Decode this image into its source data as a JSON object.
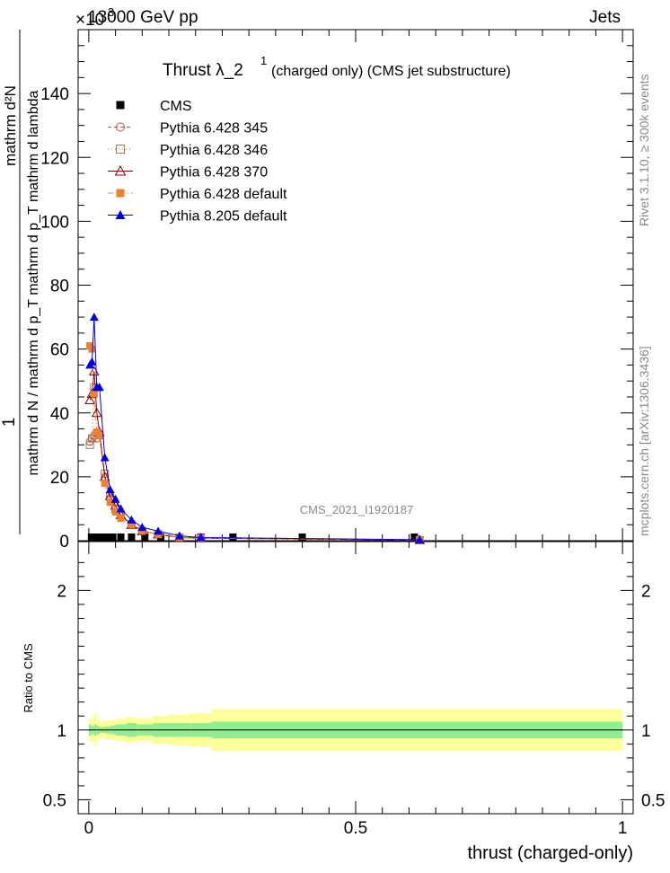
{
  "header": {
    "left": "13000 GeV pp",
    "right": "Jets",
    "exponent": "×10"
  },
  "title": {
    "main": "Thrust  λ_2",
    "sup": "1",
    "rest": "(charged only) (CMS jet substructure)"
  },
  "watermark": "CMS_2021_I1920187",
  "side_text": {
    "rivet": "Rivet 3.1.10, ≥ 300k events",
    "mcplots": "mcplots.cern.ch [arXiv:1306.3436]"
  },
  "ylabel_main": {
    "numerator": "1",
    "denominator": "mathrm d N / mathrm d p_T mathrm d p_T mathrm d lambda",
    "numerator2": "mathrm d²N"
  },
  "ylabel_ratio": "Ratio to CMS",
  "xlabel": "thrust (charged-only)",
  "colors": {
    "cms": "#000000",
    "p345": "#c0504d",
    "p346": "#a0784c",
    "p370": "#800000",
    "pdef": "#f08030",
    "p8": "#0000dd",
    "band_inner": "#90ee90",
    "band_outer": "#ffff99"
  },
  "chart_data": [
    {
      "type": "line",
      "xlim": [
        -0.02,
        1.02
      ],
      "ylim": [
        0,
        160
      ],
      "y_scale_exponent": 3,
      "yticks": [
        0,
        20,
        40,
        60,
        80,
        100,
        120,
        140
      ],
      "series": [
        {
          "name": "CMS",
          "marker": "square",
          "x": [
            0.005,
            0.015,
            0.025,
            0.035,
            0.045,
            0.06,
            0.08,
            0.105,
            0.135,
            0.17,
            0.21,
            0.27,
            0.4,
            0.61
          ],
          "y": [
            0.5,
            0.5,
            0.5,
            0.5,
            0.5,
            0.5,
            0.5,
            0.5,
            0.5,
            0.3,
            0.3,
            0.2,
            0.1,
            0.05
          ]
        },
        {
          "name": "Pythia 6.428 345",
          "marker": "open-circle",
          "x": [
            0.002,
            0.006,
            0.01,
            0.015,
            0.02,
            0.03,
            0.04,
            0.05,
            0.06,
            0.08,
            0.1,
            0.13,
            0.17,
            0.21,
            0.62
          ],
          "y": [
            31,
            32,
            33,
            32,
            33,
            20,
            13,
            10,
            8,
            5,
            3,
            2,
            1,
            0.8,
            0.2
          ]
        },
        {
          "name": "Pythia 6.428 346",
          "marker": "open-square",
          "x": [
            0.002,
            0.006,
            0.01,
            0.015,
            0.02,
            0.03,
            0.04,
            0.05,
            0.06,
            0.08,
            0.1,
            0.13,
            0.17,
            0.21,
            0.62
          ],
          "y": [
            30,
            32,
            48,
            33,
            33,
            21,
            14,
            10,
            8,
            5,
            3,
            2,
            1,
            0.8,
            0.2
          ]
        },
        {
          "name": "Pythia 6.428 370",
          "marker": "open-triangle",
          "x": [
            0.002,
            0.006,
            0.01,
            0.015,
            0.02,
            0.03,
            0.04,
            0.05,
            0.06,
            0.08,
            0.1,
            0.13,
            0.17,
            0.21,
            0.62
          ],
          "y": [
            44,
            46,
            53,
            40,
            34,
            20,
            14,
            11,
            8,
            5,
            3,
            2,
            1,
            0.8,
            0.2
          ]
        },
        {
          "name": "Pythia 6.428 default",
          "marker": "filled-square",
          "x": [
            0.002,
            0.006,
            0.01,
            0.015,
            0.02,
            0.03,
            0.04,
            0.05,
            0.06,
            0.08,
            0.1,
            0.13,
            0.17,
            0.21,
            0.62
          ],
          "y": [
            61,
            60,
            46,
            34,
            33,
            18,
            12,
            9,
            7,
            5,
            3,
            2,
            1,
            0.8,
            0.2
          ]
        },
        {
          "name": "Pythia 8.205 default",
          "marker": "filled-triangle",
          "x": [
            0.002,
            0.006,
            0.01,
            0.015,
            0.02,
            0.03,
            0.04,
            0.05,
            0.06,
            0.08,
            0.1,
            0.13,
            0.17,
            0.21,
            0.62
          ],
          "y": [
            55,
            56,
            70,
            48,
            48,
            26,
            16,
            13,
            10,
            6.5,
            4.2,
            3,
            1.5,
            1,
            0.3
          ]
        }
      ],
      "legend_position": "top-left"
    },
    {
      "type": "area",
      "xlim": [
        -0.02,
        1.02
      ],
      "ylim": [
        0.4,
        2.35
      ],
      "yticks": [
        0.5,
        1,
        2
      ],
      "xticks": [
        0,
        0.5,
        1
      ],
      "xtick_labels": [
        "0",
        "0.5",
        "1"
      ],
      "bins": [
        0,
        0.005,
        0.01,
        0.015,
        0.02,
        0.03,
        0.04,
        0.05,
        0.07,
        0.09,
        0.12,
        0.15,
        0.19,
        0.23,
        1.0
      ],
      "inner_band": [
        0.04,
        0.03,
        0.04,
        0.03,
        0.02,
        0.025,
        0.03,
        0.04,
        0.05,
        0.04,
        0.05,
        0.05,
        0.05,
        0.06
      ],
      "outer_band": [
        0.08,
        0.08,
        0.12,
        0.08,
        0.06,
        0.07,
        0.07,
        0.08,
        0.09,
        0.08,
        0.1,
        0.11,
        0.12,
        0.15
      ]
    }
  ]
}
